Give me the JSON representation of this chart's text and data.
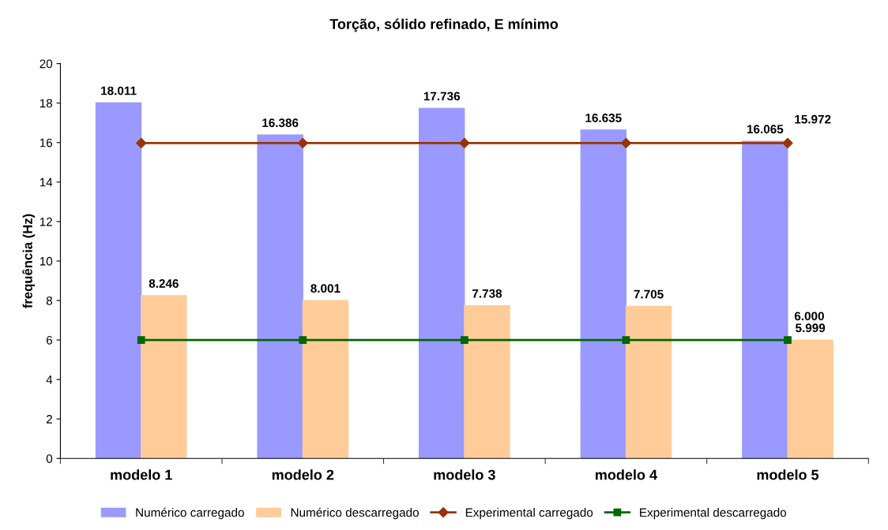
{
  "chart_data": {
    "type": "bar",
    "title": "Torção, sólido refinado, E mínimo",
    "ylabel": "frequência (Hz)",
    "categories": [
      "modelo 1",
      "modelo 2",
      "modelo 3",
      "modelo 4",
      "modelo 5"
    ],
    "series": [
      {
        "name": "Numérico carregado",
        "color": "#9999ff",
        "values": [
          18.011,
          16.386,
          17.736,
          16.635,
          16.065
        ]
      },
      {
        "name": "Numérico descarregado",
        "color": "#ffcc99",
        "values": [
          8.246,
          8.001,
          7.738,
          7.705,
          5.999
        ]
      },
      {
        "name": "Experimental carregado",
        "type": "line",
        "color": "#993300",
        "marker": "diamond",
        "values": [
          15.972,
          15.972,
          15.972,
          15.972,
          15.972
        ],
        "value_labels": [
          null,
          null,
          null,
          null,
          "15.972"
        ]
      },
      {
        "name": "Experimental descarregado",
        "type": "line",
        "color": "#006600",
        "marker": "square",
        "values": [
          6.0,
          6.0,
          6.0,
          6.0,
          6.0
        ],
        "value_labels": [
          null,
          null,
          null,
          null,
          "6.000"
        ]
      }
    ],
    "ylim": [
      0,
      20
    ],
    "yticks": [
      0,
      2,
      4,
      6,
      8,
      10,
      12,
      14,
      16,
      18,
      20
    ],
    "grid": false,
    "legend": "bottom",
    "data_labels": true
  }
}
